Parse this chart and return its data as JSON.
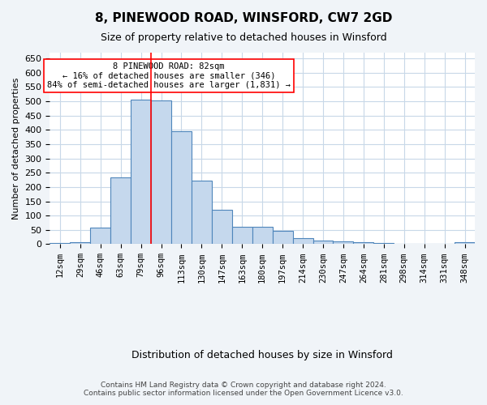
{
  "title1": "8, PINEWOOD ROAD, WINSFORD, CW7 2GD",
  "title2": "Size of property relative to detached houses in Winsford",
  "xlabel": "Distribution of detached houses by size in Winsford",
  "ylabel": "Number of detached properties",
  "categories": [
    "12sqm",
    "29sqm",
    "46sqm",
    "63sqm",
    "79sqm",
    "96sqm",
    "113sqm",
    "130sqm",
    "147sqm",
    "163sqm",
    "180sqm",
    "197sqm",
    "214sqm",
    "230sqm",
    "247sqm",
    "264sqm",
    "281sqm",
    "298sqm",
    "314sqm",
    "331sqm",
    "348sqm"
  ],
  "values": [
    3,
    8,
    58,
    235,
    507,
    502,
    395,
    222,
    120,
    62,
    62,
    46,
    20,
    12,
    10,
    7,
    5,
    0,
    0,
    0,
    6
  ],
  "bar_color": "#c5d8ed",
  "bar_edge_color": "#4f86bb",
  "red_line_x": 4.5,
  "ylim": [
    0,
    670
  ],
  "yticks": [
    0,
    50,
    100,
    150,
    200,
    250,
    300,
    350,
    400,
    450,
    500,
    550,
    600,
    650
  ],
  "annotation_line1": "8 PINEWOOD ROAD: 82sqm",
  "annotation_line2": "← 16% of detached houses are smaller (346)",
  "annotation_line3": "84% of semi-detached houses are larger (1,831) →",
  "footer1": "Contains HM Land Registry data © Crown copyright and database right 2024.",
  "footer2": "Contains public sector information licensed under the Open Government Licence v3.0.",
  "bg_color": "#f0f4f8",
  "plot_bg_color": "#ffffff",
  "grid_color": "#c8d8e8"
}
